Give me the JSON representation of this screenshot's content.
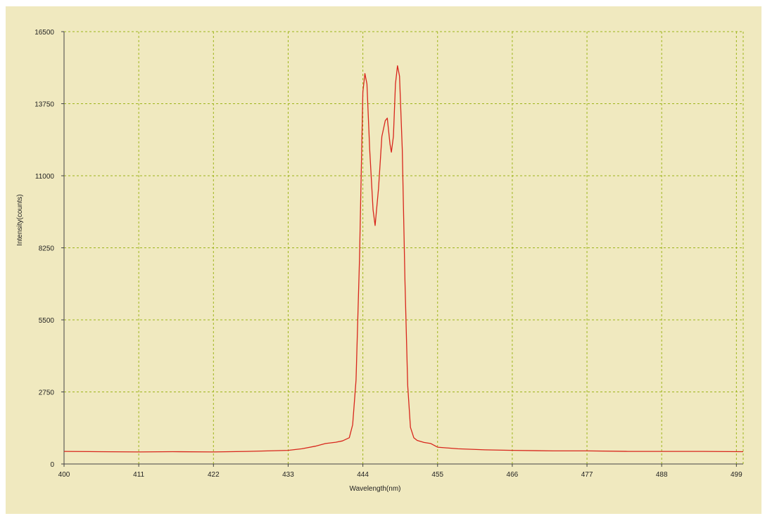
{
  "colors": {
    "background": "#f0e9bf",
    "grid": "#9db51a",
    "axis": "#444444",
    "line": "#d8261c"
  },
  "chart_data": {
    "type": "line",
    "title": "",
    "xlabel": "Wavelength(nm)",
    "ylabel": "Intensity(counts)",
    "xlim": [
      400,
      500
    ],
    "ylim": [
      0,
      16500
    ],
    "x_ticks": [
      400,
      411,
      422,
      433,
      444,
      455,
      466,
      477,
      488,
      499
    ],
    "y_ticks": [
      0,
      2750,
      5500,
      8250,
      11000,
      13750,
      16500
    ],
    "x_tick_labels": [
      "400",
      "411",
      "422",
      "433",
      "444",
      "455",
      "466",
      "477",
      "488",
      "499"
    ],
    "y_tick_labels": [
      "0",
      "2750",
      "5500",
      "8250",
      "11000",
      "13750",
      "16500"
    ],
    "grid": true,
    "series": [
      {
        "points": [
          [
            400,
            480
          ],
          [
            405,
            470
          ],
          [
            411,
            460
          ],
          [
            416,
            470
          ],
          [
            422,
            460
          ],
          [
            427,
            480
          ],
          [
            430,
            500
          ],
          [
            433,
            520
          ],
          [
            435,
            580
          ],
          [
            437,
            680
          ],
          [
            438.5,
            780
          ],
          [
            440,
            830
          ],
          [
            441,
            880
          ],
          [
            442,
            1000
          ],
          [
            442.5,
            1500
          ],
          [
            443,
            3200
          ],
          [
            443.5,
            7800
          ],
          [
            444,
            14200
          ],
          [
            444.3,
            14900
          ],
          [
            444.6,
            14500
          ],
          [
            445,
            12000
          ],
          [
            445.5,
            9700
          ],
          [
            445.8,
            9100
          ],
          [
            446.3,
            10500
          ],
          [
            446.8,
            12500
          ],
          [
            447.3,
            13100
          ],
          [
            447.6,
            13200
          ],
          [
            448,
            12200
          ],
          [
            448.2,
            11900
          ],
          [
            448.5,
            12500
          ],
          [
            448.8,
            14500
          ],
          [
            449.1,
            15200
          ],
          [
            449.4,
            14800
          ],
          [
            449.8,
            12000
          ],
          [
            450.2,
            7000
          ],
          [
            450.6,
            3000
          ],
          [
            451,
            1400
          ],
          [
            451.5,
            1000
          ],
          [
            452,
            900
          ],
          [
            453,
            820
          ],
          [
            454,
            780
          ],
          [
            455,
            640
          ],
          [
            458,
            580
          ],
          [
            462,
            540
          ],
          [
            466,
            520
          ],
          [
            472,
            500
          ],
          [
            477,
            500
          ],
          [
            483,
            480
          ],
          [
            488,
            480
          ],
          [
            494,
            480
          ],
          [
            500,
            470
          ]
        ]
      }
    ]
  }
}
